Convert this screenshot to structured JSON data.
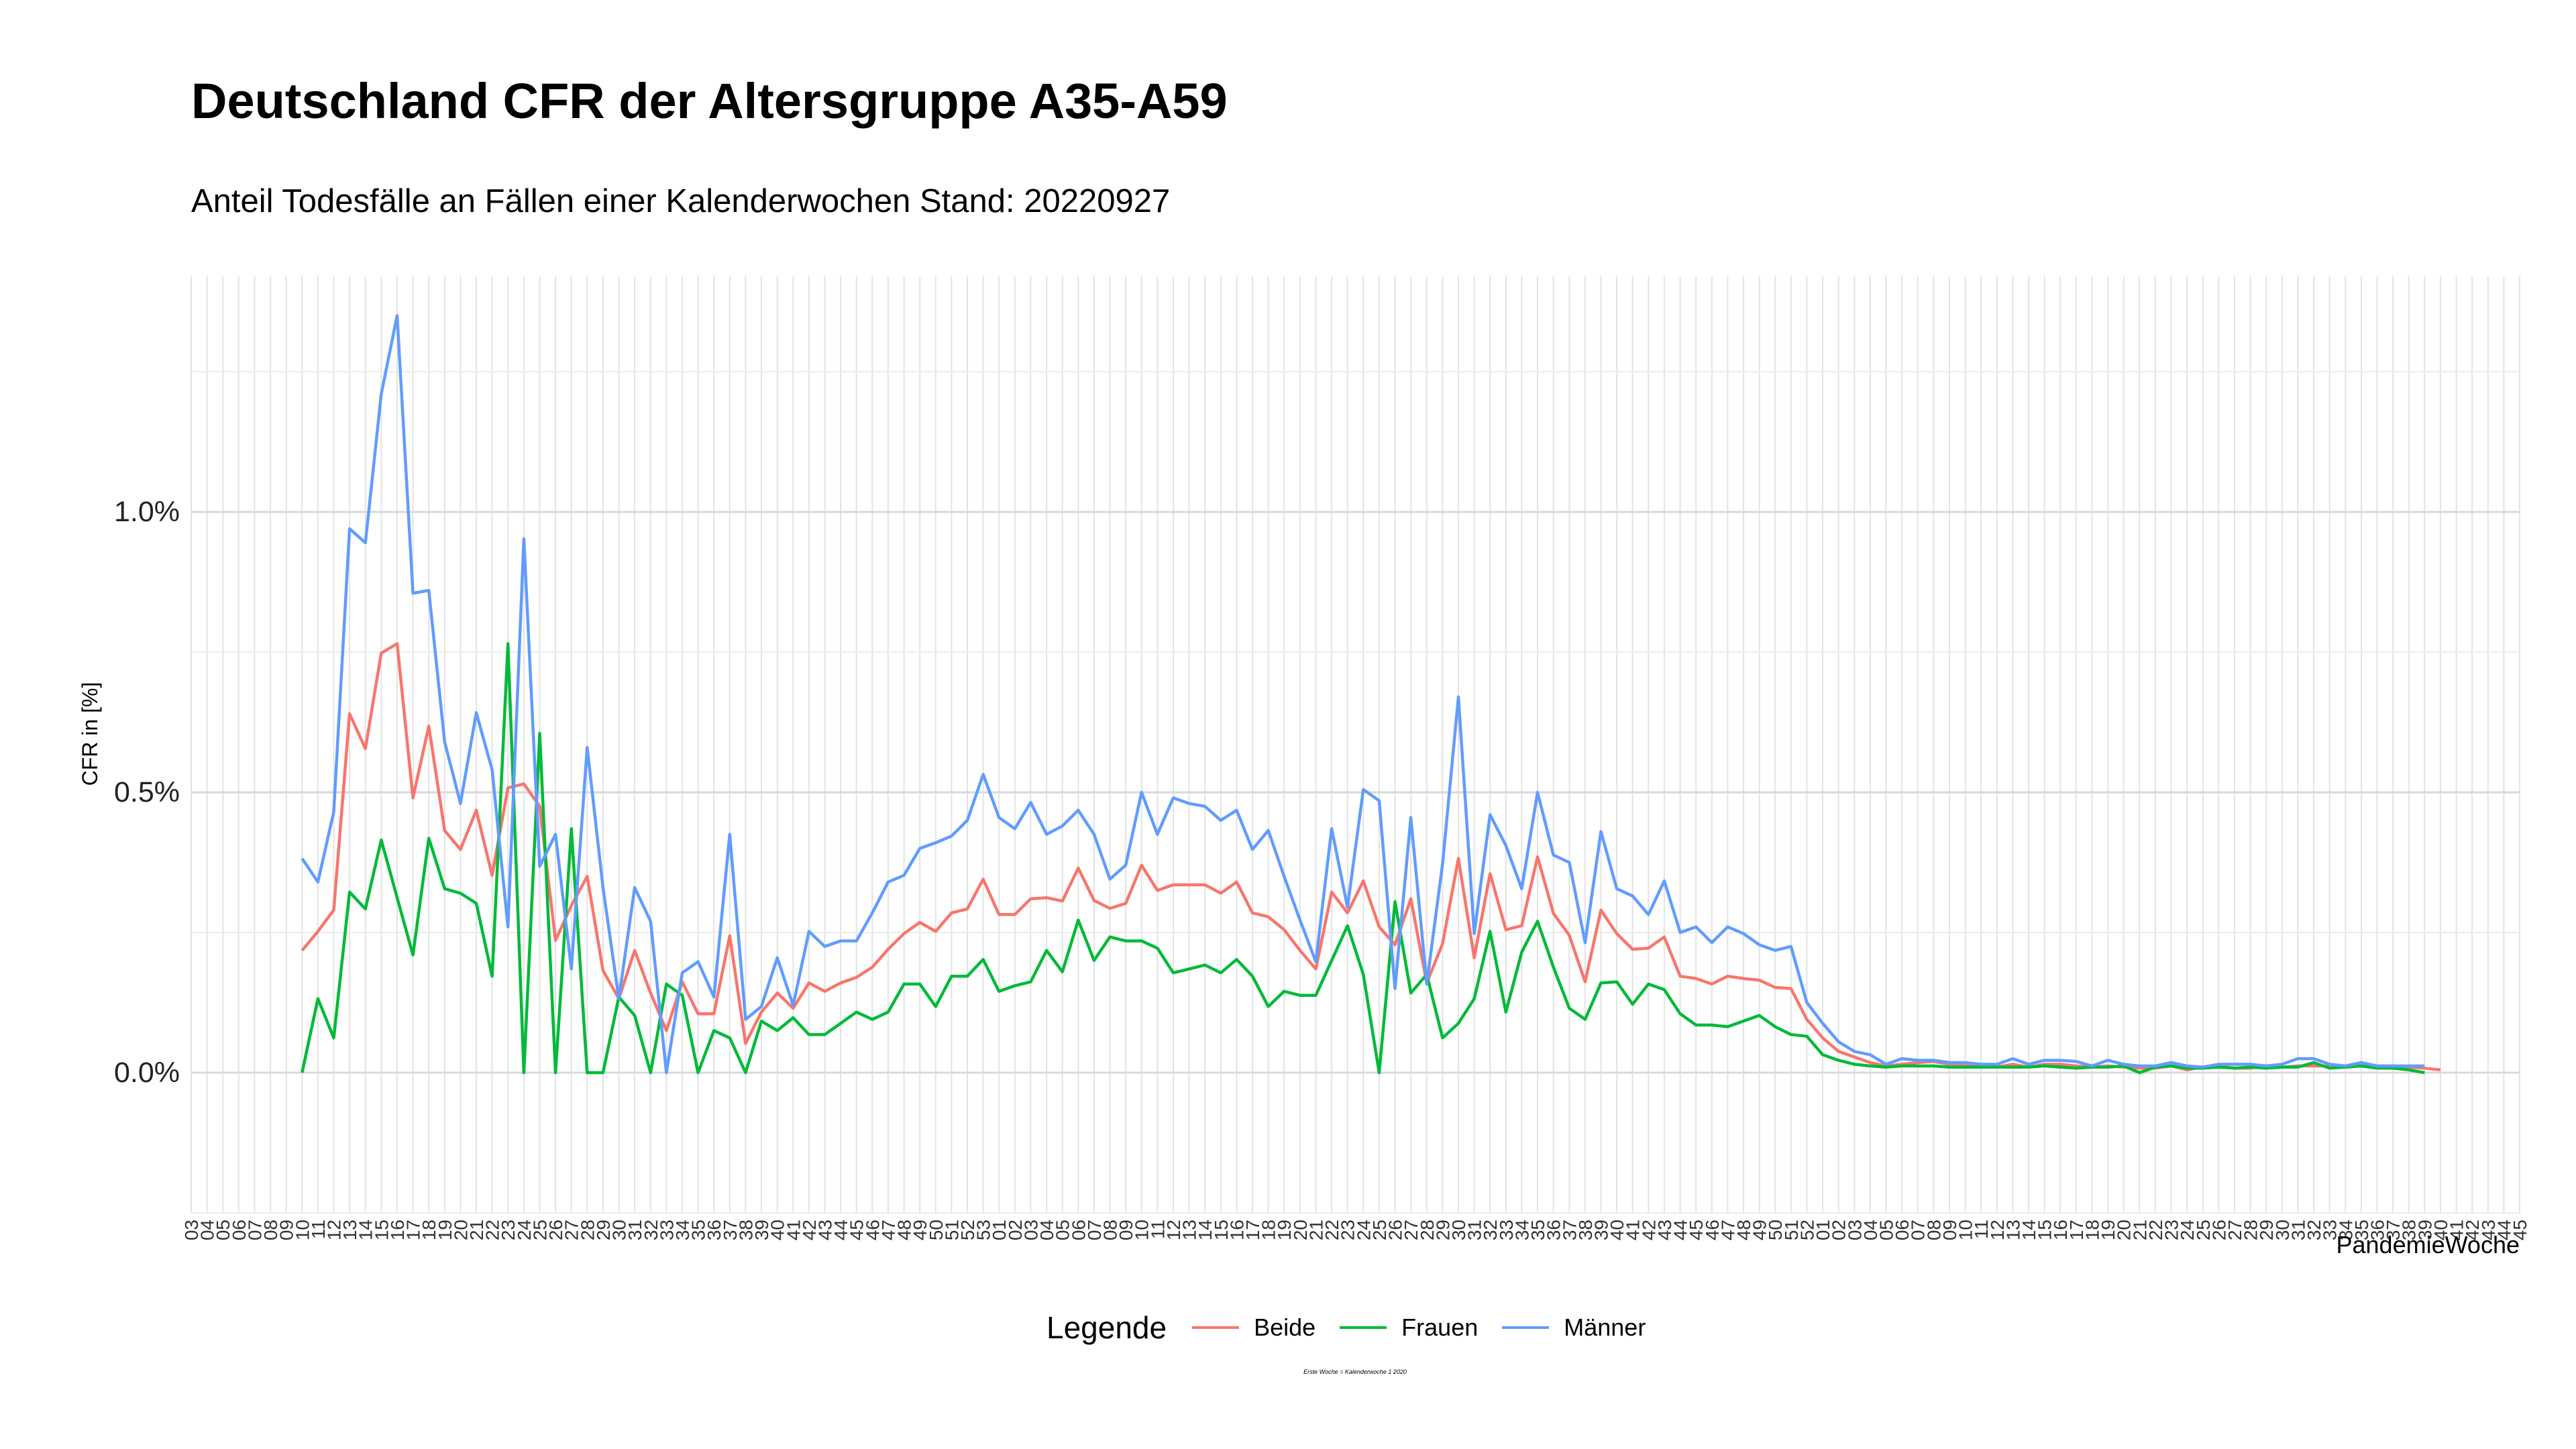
{
  "chart_data": {
    "type": "line",
    "title": "Deutschland CFR der Altersgruppe A35-A59",
    "subtitle": "Anteil Todesfälle an Fällen einer Kalenderwochen Stand: 20220927",
    "xlabel": "PandemieWoche",
    "ylabel": "CFR in [%]",
    "caption": "Erste Woche = Kalenderwoche 1 2020",
    "ylim": [
      -0.0025,
      0.0142
    ],
    "yticks": [
      0,
      0.005,
      0.01
    ],
    "ytick_labels": [
      "0.0%",
      "0.5%",
      "1.0%"
    ],
    "grid": true,
    "legend": {
      "title": "Legende",
      "position": "bottom"
    },
    "x_tick_labels": [
      "03",
      "04",
      "05",
      "06",
      "07",
      "08",
      "09",
      "10",
      "11",
      "12",
      "13",
      "14",
      "15",
      "16",
      "17",
      "18",
      "19",
      "20",
      "21",
      "22",
      "23",
      "24",
      "25",
      "26",
      "27",
      "28",
      "29",
      "30",
      "31",
      "32",
      "33",
      "34",
      "35",
      "36",
      "37",
      "38",
      "39",
      "40",
      "41",
      "42",
      "43",
      "44",
      "45",
      "46",
      "47",
      "48",
      "49",
      "50",
      "51",
      "52",
      "53",
      "01",
      "02",
      "03",
      "04",
      "05",
      "06",
      "07",
      "08",
      "09",
      "10",
      "11",
      "12",
      "13",
      "14",
      "15",
      "16",
      "17",
      "18",
      "19",
      "20",
      "21",
      "22",
      "23",
      "24",
      "25",
      "26",
      "27",
      "28",
      "29",
      "30",
      "31",
      "32",
      "33",
      "34",
      "35",
      "36",
      "37",
      "38",
      "39",
      "40",
      "41",
      "42",
      "43",
      "44",
      "45",
      "46",
      "47",
      "48",
      "49",
      "50",
      "51",
      "52",
      "01",
      "02",
      "03",
      "04",
      "05",
      "06",
      "07",
      "08",
      "09",
      "10",
      "11",
      "12",
      "13",
      "14",
      "15",
      "16",
      "17",
      "18",
      "19",
      "20",
      "21",
      "22",
      "23",
      "24",
      "25",
      "26",
      "27",
      "28",
      "29",
      "30",
      "31",
      "32",
      "33",
      "34",
      "35",
      "36",
      "37",
      "38",
      "39",
      "40",
      "41",
      "42",
      "43",
      "44",
      "45"
    ],
    "series": [
      {
        "name": "Beide",
        "color": "#F8766D",
        "start_index": 7,
        "values": [
          0.00218,
          0.00252,
          0.0029,
          0.0064,
          0.00578,
          0.00748,
          0.00765,
          0.0049,
          0.00618,
          0.00432,
          0.00398,
          0.00468,
          0.00352,
          0.00508,
          0.00515,
          0.00475,
          0.00236,
          0.00298,
          0.0035,
          0.00182,
          0.00132,
          0.00218,
          0.00142,
          0.00075,
          0.00162,
          0.00105,
          0.00105,
          0.00244,
          0.00052,
          0.00108,
          0.00142,
          0.00115,
          0.0016,
          0.00145,
          0.0016,
          0.0017,
          0.00188,
          0.0022,
          0.00248,
          0.00268,
          0.00252,
          0.00285,
          0.00292,
          0.00345,
          0.00282,
          0.00282,
          0.0031,
          0.00312,
          0.00306,
          0.00365,
          0.00307,
          0.00293,
          0.00302,
          0.0037,
          0.00325,
          0.00335,
          0.00335,
          0.00335,
          0.0032,
          0.0034,
          0.00285,
          0.00278,
          0.00255,
          0.00218,
          0.00185,
          0.00322,
          0.00285,
          0.00342,
          0.0026,
          0.00228,
          0.0031,
          0.0016,
          0.0023,
          0.00382,
          0.00205,
          0.00355,
          0.00255,
          0.00262,
          0.00385,
          0.00284,
          0.00245,
          0.00162,
          0.0029,
          0.00248,
          0.0022,
          0.00222,
          0.00242,
          0.00172,
          0.00168,
          0.00158,
          0.00172,
          0.00168,
          0.00165,
          0.00152,
          0.0015,
          0.00095,
          0.00062,
          0.00038,
          0.00028,
          0.00018,
          0.00012,
          0.00015,
          0.00018,
          0.0002,
          0.00015,
          0.00015,
          0.00012,
          0.0001,
          0.00015,
          0.0001,
          0.00015,
          0.00015,
          0.00012,
          0.0001,
          0.00012,
          0.0001,
          8e-05,
          8e-05,
          0.00012,
          5e-05,
          0.0001,
          0.00012,
          8e-05,
          8e-05,
          0.00012,
          0.0001,
          0.00012,
          0.00012,
          0.00012,
          0.00012,
          0.00012,
          0.00012,
          0.00012,
          0.0001,
          8e-05,
          5e-05
        ]
      },
      {
        "name": "Frauen",
        "color": "#00BA38",
        "start_index": 7,
        "values": [
          0.0,
          0.00132,
          0.00062,
          0.00322,
          0.00292,
          0.00415,
          0.00312,
          0.0021,
          0.00418,
          0.00328,
          0.0032,
          0.00302,
          0.00172,
          0.00765,
          0.0,
          0.00605,
          0.0,
          0.00435,
          0.0,
          0.0,
          0.00135,
          0.00102,
          0.0,
          0.00158,
          0.00138,
          0.0,
          0.00075,
          0.00062,
          0.0,
          0.00092,
          0.00075,
          0.00098,
          0.00068,
          0.00068,
          0.00088,
          0.00108,
          0.00095,
          0.00108,
          0.00158,
          0.00158,
          0.00118,
          0.00172,
          0.00172,
          0.00202,
          0.00145,
          0.00155,
          0.00162,
          0.00218,
          0.0018,
          0.00272,
          0.002,
          0.00242,
          0.00235,
          0.00235,
          0.00222,
          0.00178,
          0.00185,
          0.00192,
          0.00178,
          0.00202,
          0.00172,
          0.00118,
          0.00145,
          0.00138,
          0.00138,
          0.002,
          0.00262,
          0.00175,
          0.0,
          0.00305,
          0.00142,
          0.00175,
          0.00062,
          0.00088,
          0.00132,
          0.00252,
          0.00108,
          0.00215,
          0.0027,
          0.00188,
          0.00115,
          0.00095,
          0.0016,
          0.00162,
          0.00122,
          0.00158,
          0.00148,
          0.00105,
          0.00085,
          0.00085,
          0.00082,
          0.00092,
          0.00102,
          0.00082,
          0.00068,
          0.00065,
          0.00032,
          0.00022,
          0.00015,
          0.00012,
          0.0001,
          0.00012,
          0.00012,
          0.00012,
          0.0001,
          0.0001,
          0.0001,
          0.0001,
          0.0001,
          0.0001,
          0.00012,
          0.0001,
          8e-05,
          0.0001,
          0.0001,
          0.00012,
          0.0,
          0.0001,
          0.00012,
          8e-05,
          8e-05,
          0.0001,
          8e-05,
          0.0001,
          8e-05,
          0.0001,
          0.0001,
          0.00018,
          8e-05,
          0.0001,
          0.00012,
          8e-05,
          8e-05,
          5e-05,
          0.0
        ]
      },
      {
        "name": "Männer",
        "color": "#619CFF",
        "start_index": 7,
        "values": [
          0.00382,
          0.0034,
          0.00465,
          0.0097,
          0.00945,
          0.0121,
          0.0135,
          0.00855,
          0.0086,
          0.0059,
          0.0048,
          0.00642,
          0.0054,
          0.0026,
          0.00952,
          0.00368,
          0.00425,
          0.00185,
          0.0058,
          0.0033,
          0.00132,
          0.0033,
          0.0027,
          0.0,
          0.00178,
          0.00198,
          0.00135,
          0.00425,
          0.00095,
          0.00118,
          0.00205,
          0.0012,
          0.00252,
          0.00225,
          0.00235,
          0.00235,
          0.00285,
          0.0034,
          0.00352,
          0.004,
          0.0041,
          0.00422,
          0.0045,
          0.00532,
          0.00455,
          0.00435,
          0.00482,
          0.00425,
          0.0044,
          0.00468,
          0.00425,
          0.00345,
          0.0037,
          0.005,
          0.00425,
          0.0049,
          0.0048,
          0.00475,
          0.0045,
          0.00468,
          0.00398,
          0.00432,
          0.0035,
          0.00272,
          0.00198,
          0.00435,
          0.00295,
          0.00505,
          0.00485,
          0.0015,
          0.00455,
          0.00158,
          0.00372,
          0.0067,
          0.00248,
          0.0046,
          0.00405,
          0.00328,
          0.005,
          0.00388,
          0.00375,
          0.00232,
          0.0043,
          0.00328,
          0.00315,
          0.00282,
          0.00342,
          0.0025,
          0.0026,
          0.00232,
          0.0026,
          0.00248,
          0.00228,
          0.00218,
          0.00225,
          0.00125,
          0.00088,
          0.00055,
          0.00038,
          0.00032,
          0.00015,
          0.00025,
          0.00022,
          0.00022,
          0.00018,
          0.00018,
          0.00015,
          0.00015,
          0.00025,
          0.00015,
          0.00022,
          0.00022,
          0.0002,
          0.00012,
          0.00022,
          0.00015,
          0.00012,
          0.00012,
          0.00018,
          0.00012,
          0.0001,
          0.00015,
          0.00015,
          0.00015,
          0.00012,
          0.00015,
          0.00025,
          0.00025,
          0.00015,
          0.00012,
          0.00018,
          0.00012,
          0.00012,
          0.00012,
          0.00012
        ]
      }
    ]
  }
}
